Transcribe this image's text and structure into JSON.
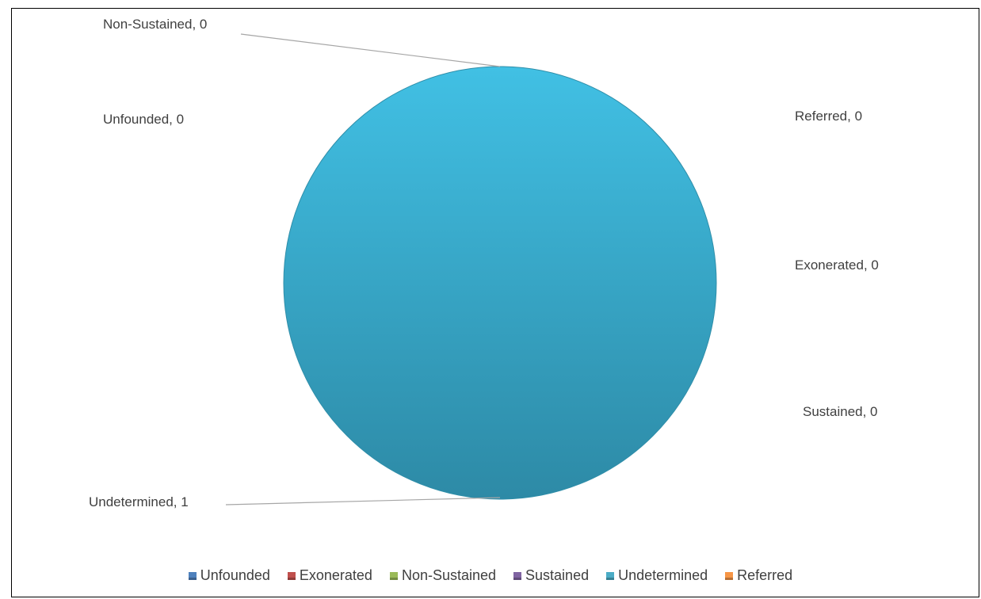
{
  "chart_data": {
    "type": "pie",
    "slices": [
      {
        "name": "Unfounded",
        "value": 0,
        "color": "#4f81bd",
        "label": "Unfounded, 0"
      },
      {
        "name": "Exonerated",
        "value": 0,
        "color": "#c0504d",
        "label": "Exonerated, 0"
      },
      {
        "name": "Non-Sustained",
        "value": 0,
        "color": "#9bbb59",
        "label": "Non-Sustained, 0"
      },
      {
        "name": "Sustained",
        "value": 0,
        "color": "#8064a2",
        "label": "Sustained, 0"
      },
      {
        "name": "Undetermined",
        "value": 1,
        "color": "#4bacc6",
        "label": "Undetermined, 1"
      },
      {
        "name": "Referred",
        "value": 0,
        "color": "#f79646",
        "label": "Referred, 0"
      }
    ],
    "legend_position": "bottom",
    "title": ""
  }
}
